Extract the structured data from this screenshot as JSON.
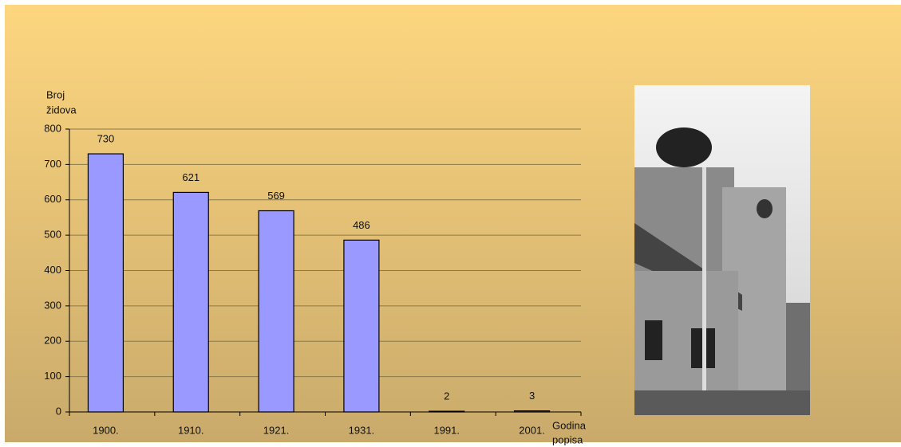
{
  "chart_data": {
    "type": "bar",
    "y_label": [
      "Broj",
      "židova"
    ],
    "x_label": [
      "Godina",
      "popisa"
    ],
    "categories": [
      "1900.",
      "1910.",
      "1921.",
      "1931.",
      "1991.",
      "2001."
    ],
    "values": [
      730,
      621,
      569,
      486,
      2,
      3
    ],
    "color": "#9999ff",
    "ylim": [
      0,
      800
    ],
    "yticks": [
      0,
      100,
      200,
      300,
      400,
      500,
      600,
      700,
      800
    ],
    "grid": true
  }
}
